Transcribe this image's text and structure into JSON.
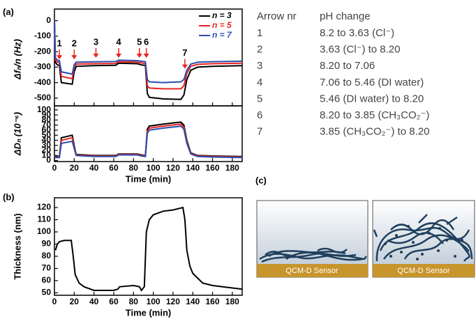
{
  "panel_labels": [
    "(a)",
    "(b)",
    "(c)"
  ],
  "chart_data": [
    {
      "type": "line",
      "y_label": "Δfₙ/n (Hz)",
      "x": [
        0,
        1,
        3,
        5,
        7,
        18,
        20,
        22,
        40,
        62,
        65,
        84,
        88,
        92,
        94,
        96,
        110,
        128,
        131,
        134,
        138,
        145,
        160,
        190
      ],
      "xlim": [
        0,
        190
      ],
      "xticks": [
        0,
        20,
        40,
        60,
        80,
        100,
        120,
        140,
        160,
        180
      ],
      "ylim": [
        -550,
        75
      ],
      "yticks": [
        -500,
        -400,
        -300,
        -200,
        -100,
        0
      ],
      "legend": "upper right",
      "series": [
        {
          "name": "n = 3",
          "color": "#000000",
          "values": [
            0,
            -270,
            -285,
            -290,
            -400,
            -410,
            -330,
            -295,
            -290,
            -288,
            -275,
            -278,
            -285,
            -290,
            -470,
            -495,
            -505,
            -508,
            -480,
            -380,
            -320,
            -300,
            -295,
            -290
          ]
        },
        {
          "name": "n = 5",
          "color": "#e8231f",
          "values": [
            0,
            -255,
            -268,
            -270,
            -360,
            -375,
            -300,
            -280,
            -278,
            -276,
            -265,
            -268,
            -272,
            -278,
            -420,
            -435,
            -440,
            -440,
            -420,
            -340,
            -295,
            -282,
            -278,
            -275
          ]
        },
        {
          "name": "n = 7",
          "color": "#2a4db0",
          "values": [
            0,
            -240,
            -255,
            -258,
            -330,
            -345,
            -285,
            -268,
            -266,
            -264,
            -255,
            -258,
            -262,
            -265,
            -380,
            -395,
            -400,
            -395,
            -380,
            -320,
            -280,
            -268,
            -265,
            -262
          ]
        }
      ],
      "annotations": [
        {
          "label": "1",
          "x": 5,
          "y": -250
        },
        {
          "label": "2",
          "x": 20,
          "y": -250
        },
        {
          "label": "3",
          "x": 42,
          "y": -240
        },
        {
          "label": "4",
          "x": 65,
          "y": -240
        },
        {
          "label": "5",
          "x": 86,
          "y": -240
        },
        {
          "label": "6",
          "x": 93,
          "y": -240
        },
        {
          "label": "7",
          "x": 132,
          "y": -310
        }
      ]
    },
    {
      "type": "line",
      "y_label": "ΔDₙ (10⁻⁶)",
      "x_label": "Time (min)",
      "x": [
        0,
        1,
        3,
        5,
        7,
        18,
        20,
        22,
        40,
        62,
        65,
        84,
        88,
        92,
        94,
        96,
        110,
        128,
        131,
        134,
        138,
        145,
        160,
        190
      ],
      "xlim": [
        0,
        190
      ],
      "xticks": [
        0,
        20,
        40,
        60,
        80,
        100,
        120,
        140,
        160,
        180
      ],
      "ylim": [
        -2,
        108
      ],
      "yticks": [
        0,
        10,
        20,
        30,
        40,
        50,
        60,
        70,
        80,
        90,
        100
      ],
      "series": [
        {
          "name": "n = 3",
          "color": "#000000",
          "values": [
            10,
            8,
            8,
            8,
            45,
            50,
            30,
            12,
            10,
            10,
            13,
            13,
            11,
            10,
            62,
            68,
            72,
            76,
            70,
            40,
            15,
            10,
            9,
            8
          ]
        },
        {
          "name": "n = 5",
          "color": "#e8231f",
          "values": [
            9,
            7,
            7,
            7,
            40,
            45,
            27,
            11,
            9,
            9,
            12,
            12,
            10,
            9,
            58,
            64,
            68,
            72,
            66,
            37,
            14,
            9,
            8,
            7
          ]
        },
        {
          "name": "n = 7",
          "color": "#2a4db0",
          "values": [
            8,
            6,
            6,
            6,
            34,
            38,
            24,
            10,
            8,
            8,
            11,
            11,
            9,
            8,
            54,
            60,
            64,
            68,
            62,
            34,
            13,
            8,
            7,
            6
          ]
        }
      ]
    },
    {
      "type": "line",
      "y_label": "Thickness (nm)",
      "x_label": "Time (min)",
      "x": [
        1,
        3,
        5,
        10,
        17,
        19,
        21,
        25,
        30,
        40,
        60,
        64,
        66,
        80,
        86,
        88,
        91,
        93,
        96,
        100,
        110,
        120,
        130,
        132,
        134,
        137,
        140,
        145,
        150,
        160,
        170,
        180,
        190
      ],
      "xlim": [
        0,
        190
      ],
      "xticks": [
        0,
        20,
        40,
        60,
        80,
        100,
        120,
        140,
        160,
        180
      ],
      "ylim": [
        48,
        128
      ],
      "yticks": [
        50,
        60,
        70,
        80,
        90,
        100,
        110,
        120
      ],
      "series": [
        {
          "color": "#000000",
          "values": [
            85,
            90,
            92,
            93,
            93,
            80,
            65,
            58,
            55,
            52,
            52,
            53,
            55,
            56,
            55,
            52,
            55,
            100,
            110,
            114,
            117,
            118,
            120,
            110,
            85,
            72,
            66,
            62,
            58,
            56,
            55,
            54,
            53
          ]
        }
      ]
    }
  ],
  "table": {
    "header": [
      "Arrow nr",
      "pH change"
    ],
    "rows": [
      [
        "1",
        "8.2 to 3.63 (Cl⁻)"
      ],
      [
        "2",
        "3.63 (Cl⁻) to 8.20"
      ],
      [
        "3",
        "8.20 to 7.06"
      ],
      [
        "4",
        "7.06 to 5.46 (DI water)"
      ],
      [
        "5",
        "5.46 (DI water) to 8.20"
      ],
      [
        "6",
        "8.20 to 3.85 (CH₃CO₂⁻)"
      ],
      [
        "7",
        "3.85 (CH₃CO₂⁻) to 8.20"
      ]
    ]
  },
  "schematic": {
    "sensor_labels": [
      "QCM-D Sensor",
      "QCM-D Sensor"
    ]
  }
}
